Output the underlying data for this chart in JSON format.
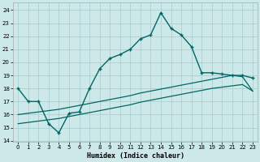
{
  "xlabel": "Humidex (Indice chaleur)",
  "bg_color": "#cce8e8",
  "grid_color": "#b0d4d4",
  "line_color": "#006666",
  "xlim": [
    -0.5,
    23.5
  ],
  "ylim": [
    13.9,
    24.6
  ],
  "yticks": [
    14,
    15,
    16,
    17,
    18,
    19,
    20,
    21,
    22,
    23,
    24
  ],
  "xticks": [
    0,
    1,
    2,
    3,
    4,
    5,
    6,
    7,
    8,
    9,
    10,
    11,
    12,
    13,
    14,
    15,
    16,
    17,
    18,
    19,
    20,
    21,
    22,
    23
  ],
  "main_x": [
    0,
    1,
    2,
    3,
    4,
    5,
    6,
    7,
    8,
    9,
    10,
    11,
    12,
    13,
    14,
    15,
    16,
    17,
    18,
    19,
    20,
    21,
    22,
    23
  ],
  "main_y": [
    18.0,
    17.0,
    17.0,
    15.3,
    14.6,
    16.1,
    16.2,
    18.0,
    19.5,
    20.3,
    20.6,
    21.0,
    21.8,
    22.1,
    23.8,
    22.6,
    22.1,
    21.2,
    19.2,
    19.2,
    19.1,
    19.0,
    19.0,
    18.8
  ],
  "low1_x": [
    0,
    1,
    2,
    3,
    4,
    5,
    6,
    7,
    8,
    9,
    10,
    11,
    12,
    13,
    14,
    15,
    16,
    17,
    18,
    19,
    20,
    21,
    22,
    23
  ],
  "low1_y": [
    15.3,
    15.4,
    15.5,
    15.6,
    15.7,
    15.85,
    16.0,
    16.15,
    16.3,
    16.45,
    16.6,
    16.75,
    16.95,
    17.1,
    17.25,
    17.4,
    17.55,
    17.7,
    17.85,
    18.0,
    18.1,
    18.2,
    18.3,
    17.8
  ],
  "low2_x": [
    0,
    1,
    2,
    3,
    4,
    5,
    6,
    7,
    8,
    9,
    10,
    11,
    12,
    13,
    14,
    15,
    16,
    17,
    18,
    19,
    20,
    21,
    22,
    23
  ],
  "low2_y": [
    16.0,
    16.1,
    16.2,
    16.3,
    16.4,
    16.55,
    16.7,
    16.85,
    17.0,
    17.15,
    17.3,
    17.45,
    17.65,
    17.8,
    17.95,
    18.1,
    18.25,
    18.4,
    18.55,
    18.7,
    18.85,
    19.0,
    18.9,
    17.8
  ]
}
